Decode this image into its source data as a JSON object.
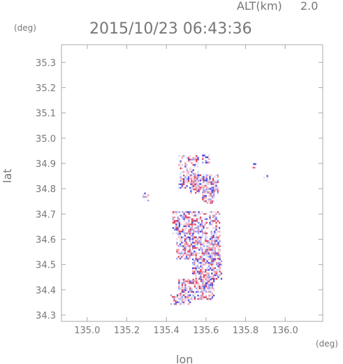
{
  "header": {
    "altitude_label": "ALT(km)",
    "altitude_value": "2.0",
    "timestamp": "2015/10/23 06:43:36"
  },
  "chart_data": {
    "type": "heatmap",
    "xlabel": "lon",
    "ylabel": "lat",
    "x_unit": "(deg)",
    "y_unit": "(deg)",
    "xlim": [
      134.87,
      136.19
    ],
    "ylim": [
      34.275,
      35.37
    ],
    "x_ticks": [
      135.0,
      135.2,
      135.4,
      135.6,
      135.8,
      136.0
    ],
    "y_ticks": [
      34.3,
      34.4,
      34.5,
      34.6,
      34.7,
      34.8,
      34.9,
      35.0,
      35.1,
      35.2,
      35.3
    ],
    "x_tick_labels": [
      "135.0",
      "135.2",
      "135.4",
      "135.6",
      "135.8",
      "136.0"
    ],
    "y_tick_labels": [
      "34.3",
      "34.4",
      "34.5",
      "34.6",
      "34.7",
      "34.8",
      "34.9",
      "35.0",
      "35.1",
      "35.2",
      "35.3"
    ],
    "grid": false,
    "colors": {
      "positive": [
        "#f6d0d6",
        "#ef9aa6",
        "#e0465b"
      ],
      "negative": [
        "#d4d4f8",
        "#9c9cf2",
        "#4f4fe0"
      ]
    },
    "cell_size_deg": [
      0.008,
      0.007
    ],
    "echo_regions": [
      {
        "lon": [
          135.52,
          135.66
        ],
        "lat": [
          34.78,
          34.85
        ],
        "density": 0.7
      },
      {
        "lon": [
          135.46,
          135.56
        ],
        "lat": [
          34.8,
          34.93
        ],
        "density": 0.45
      },
      {
        "lon": [
          135.58,
          135.62
        ],
        "lat": [
          34.9,
          34.93
        ],
        "density": 0.6
      },
      {
        "lon": [
          135.58,
          135.64
        ],
        "lat": [
          34.74,
          34.8
        ],
        "density": 0.6
      },
      {
        "lon": [
          135.43,
          135.56
        ],
        "lat": [
          34.62,
          34.71
        ],
        "density": 0.6
      },
      {
        "lon": [
          135.56,
          135.67
        ],
        "lat": [
          34.62,
          34.71
        ],
        "density": 0.5
      },
      {
        "lon": [
          135.45,
          135.67
        ],
        "lat": [
          34.52,
          34.62
        ],
        "density": 0.65
      },
      {
        "lon": [
          135.53,
          135.68
        ],
        "lat": [
          34.44,
          34.52
        ],
        "density": 0.6
      },
      {
        "lon": [
          135.46,
          135.64
        ],
        "lat": [
          34.36,
          34.44
        ],
        "density": 0.6
      },
      {
        "lon": [
          135.42,
          135.52
        ],
        "lat": [
          34.34,
          34.38
        ],
        "density": 0.55
      },
      {
        "lon": [
          135.83,
          135.85
        ],
        "lat": [
          34.88,
          34.9
        ],
        "density": 0.7
      },
      {
        "lon": [
          135.89,
          135.91
        ],
        "lat": [
          34.84,
          34.86
        ],
        "density": 0.4
      },
      {
        "lon": [
          135.28,
          135.31
        ],
        "lat": [
          34.75,
          34.78
        ],
        "density": 0.3
      }
    ]
  }
}
